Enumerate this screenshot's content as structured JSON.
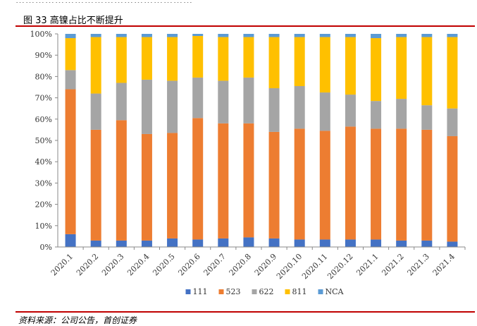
{
  "header": {
    "title": "图 33  高镍占比不断提升"
  },
  "footer": {
    "source": "资料来源：公司公告，首创证券"
  },
  "chart_data": {
    "type": "bar",
    "stacked": true,
    "percent": true,
    "categories": [
      "2020.1",
      "2020.2",
      "2020.3",
      "2020.4",
      "2020.5",
      "2020.6",
      "2020.7",
      "2020.8",
      "2020.9",
      "2020.10",
      "2020.11",
      "2020.12",
      "2021.1",
      "2021.2",
      "2021.3",
      "2021.4"
    ],
    "series": [
      {
        "name": "111",
        "color": "#4472c4",
        "values": [
          6,
          3,
          3,
          3,
          4,
          3.5,
          4,
          4.5,
          4,
          3.5,
          3.5,
          3.5,
          3.5,
          3,
          3,
          2.5
        ]
      },
      {
        "name": "523",
        "color": "#ed7d31",
        "values": [
          68,
          52,
          56.5,
          50,
          49.5,
          57,
          54,
          53.5,
          50,
          52,
          51,
          53,
          52,
          52.5,
          52,
          49.5
        ]
      },
      {
        "name": "622",
        "color": "#a5a5a5",
        "values": [
          9,
          17,
          17.5,
          25.5,
          24.5,
          19,
          20,
          21.5,
          20.5,
          20,
          18,
          15,
          13,
          14,
          11.5,
          13
        ]
      },
      {
        "name": "811",
        "color": "#ffc000",
        "values": [
          15,
          26.5,
          21.5,
          20,
          20.5,
          19.5,
          20.5,
          19,
          24,
          23,
          26,
          27,
          29.5,
          29,
          32,
          33.5
        ]
      },
      {
        "name": "NCA",
        "color": "#5b9bd5",
        "values": [
          2,
          1.5,
          1.5,
          1.5,
          1.5,
          1,
          1.5,
          1.5,
          1.5,
          1.5,
          1.5,
          1.5,
          2,
          1.5,
          1.5,
          1.5
        ]
      }
    ],
    "y_ticks": [
      "0%",
      "10%",
      "20%",
      "30%",
      "40%",
      "50%",
      "60%",
      "70%",
      "80%",
      "90%",
      "100%"
    ],
    "ylim": [
      0,
      100
    ],
    "grid": false,
    "legend_position": "bottom"
  }
}
